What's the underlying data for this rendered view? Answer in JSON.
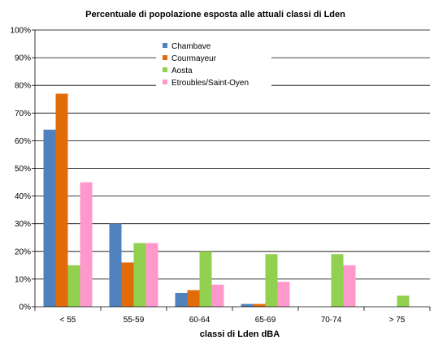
{
  "chart_data": {
    "type": "bar",
    "title": "Percentuale di popolazione esposta alle attuali classi di Lden",
    "xlabel": "classi di Lden dBA",
    "ylabel": "",
    "ylim": [
      0,
      100
    ],
    "yticks": [
      "0%",
      "10%",
      "20%",
      "30%",
      "40%",
      "50%",
      "60%",
      "70%",
      "80%",
      "90%",
      "100%"
    ],
    "categories": [
      "< 55",
      "55-59",
      "60-64",
      "65-69",
      "70-74",
      "> 75"
    ],
    "grid": true,
    "legend_position": "top-center",
    "series": [
      {
        "name": "Chambave",
        "color": "#4f81bd",
        "values": [
          64,
          30,
          5,
          1,
          0,
          0
        ]
      },
      {
        "name": "Courmayeur",
        "color": "#e36c0a",
        "values": [
          77,
          16,
          6,
          1,
          0,
          0
        ]
      },
      {
        "name": "Aosta",
        "color": "#92d050",
        "values": [
          15,
          23,
          20,
          19,
          19,
          4
        ]
      },
      {
        "name": "Etroubles/Saint-Oyen",
        "color": "#ff99cc",
        "values": [
          45,
          23,
          8,
          9,
          15,
          0
        ]
      }
    ]
  }
}
